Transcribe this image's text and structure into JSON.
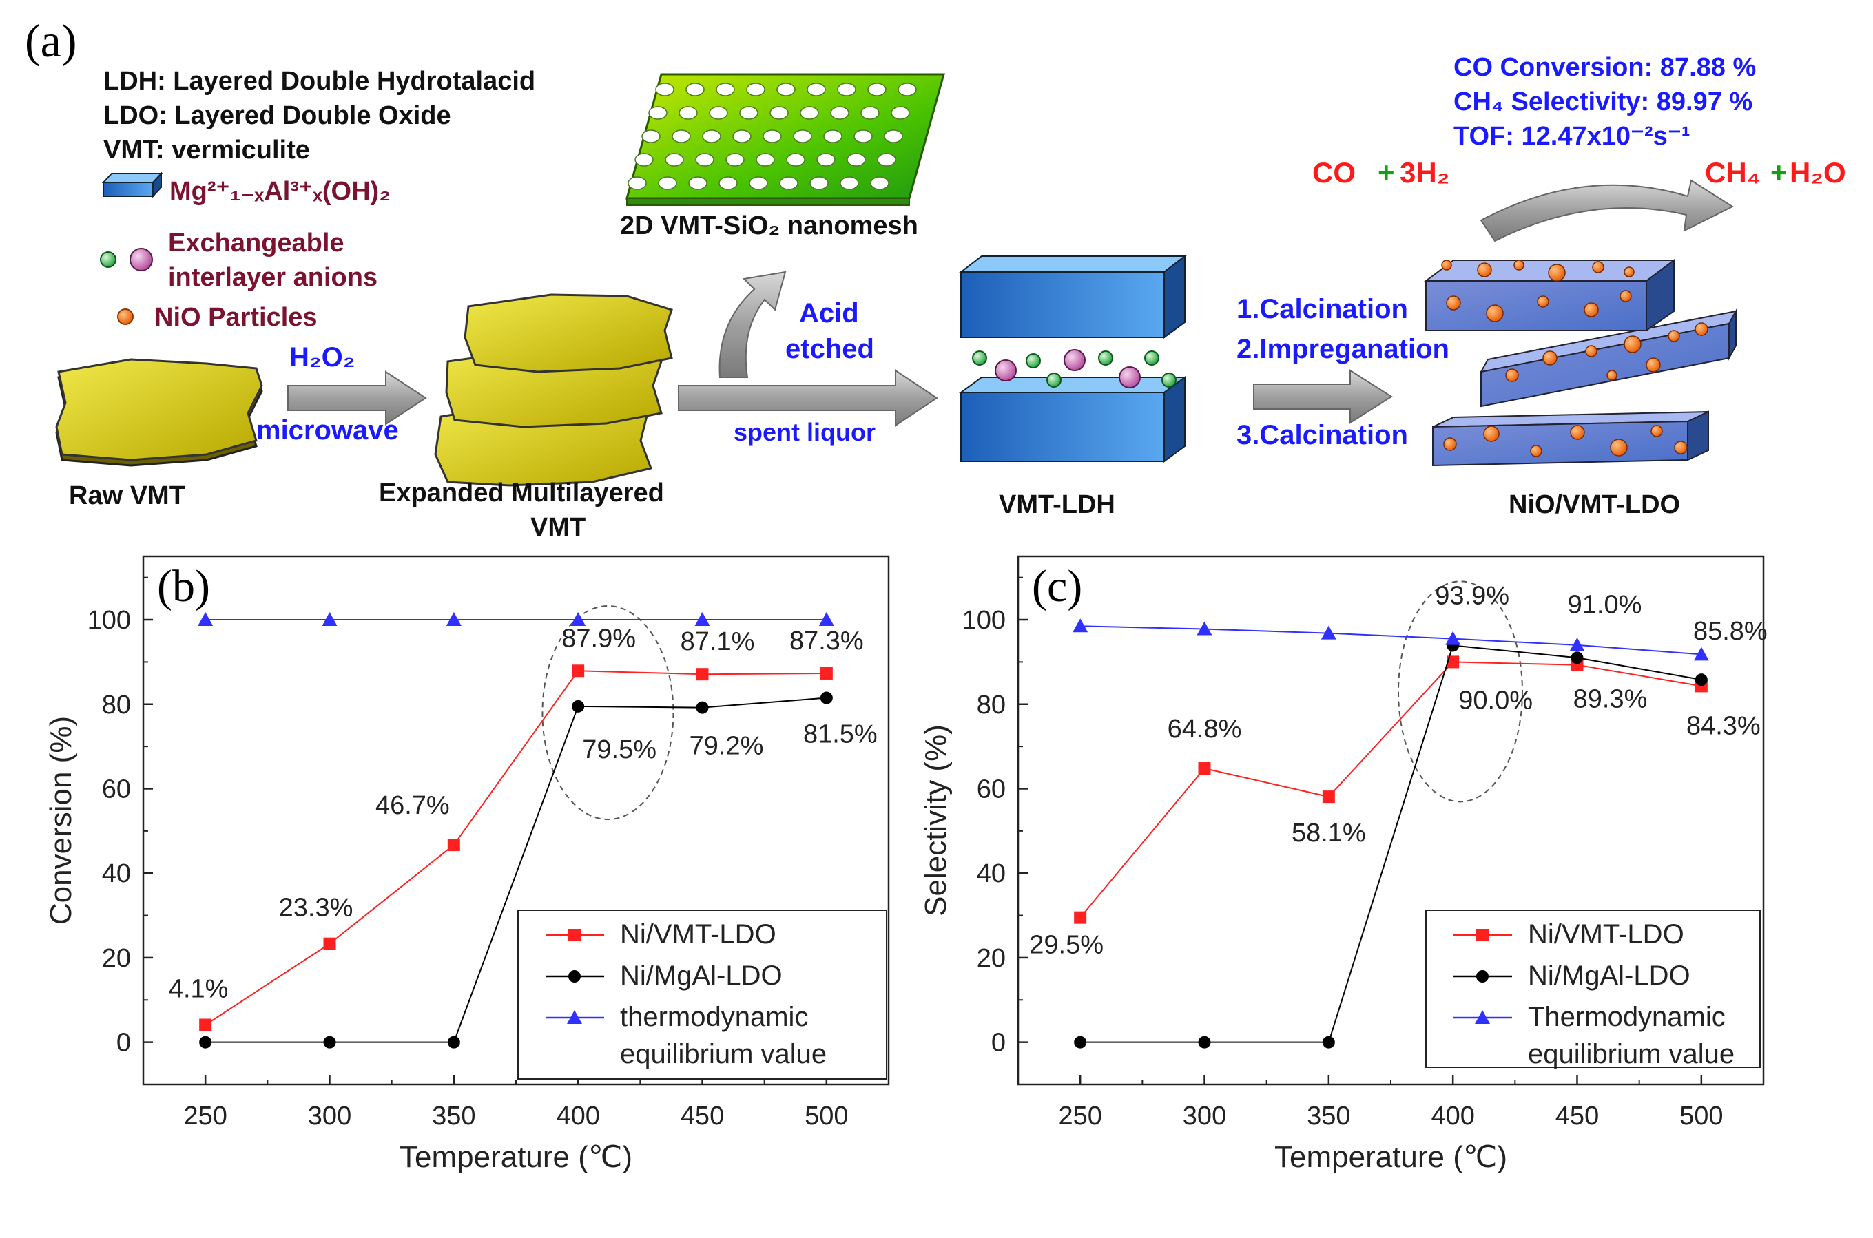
{
  "panel_a": {
    "label": "(a)",
    "legend": {
      "ldh": "LDH: Layered Double Hydrotalacid",
      "ldo": "LDO: Layered Double Oxide",
      "vmt": "VMT: vermiculite",
      "formula": "Mg²⁺₁₋ₓAl³⁺ₓ(OH)₂",
      "anions_1": "Exchangeable",
      "anions_2": "interlayer anions",
      "nio": "NiO Particles"
    },
    "results": {
      "co_conversion": "CO Conversion: 87.88 %",
      "ch4_selectivity": "CH₄ Selectivity: 89.97 %",
      "tof": "TOF: 12.47x10⁻²s⁻¹"
    },
    "reaction": {
      "reactant_1": "CO",
      "plus_1": "+",
      "reactant_2": "3H₂",
      "product_1": "CH₄",
      "plus_2": "+",
      "product_2": "H₂O"
    },
    "steps": {
      "raw": "Raw VMT",
      "h2o2": "H₂O₂",
      "microwave": "microwave",
      "expanded_1": "Expanded Multilayered",
      "expanded_2": "VMT",
      "nanomesh": "2D VMT-SiO₂ nanomesh",
      "acid_1": "Acid",
      "acid_2": "etched",
      "spent": "spent liquor",
      "vmt_ldh": "VMT-LDH",
      "calc_1": "1.Calcination",
      "calc_2": "2.Impreganation",
      "calc_3": "3.Calcination",
      "nio_ldo": "NiO/VMT-LDO"
    },
    "colors": {
      "blue_text": "#1a1aff",
      "red": "#ff1a1a",
      "green": "#12a012",
      "maroon": "#7a1230",
      "vmt": "#d2c400",
      "plate": "#2f7fd8",
      "nio_particle": "#ff6a10"
    }
  },
  "chart_data": [
    {
      "type": "line",
      "panel_label": "(b)",
      "xlabel": "Temperature (℃)",
      "ylabel": "Conversion (%)",
      "x": [
        250,
        300,
        350,
        400,
        450,
        500
      ],
      "xlim": [
        225,
        525
      ],
      "ylim": [
        -10,
        115
      ],
      "xticks": [
        "250",
        "300",
        "350",
        "400",
        "450",
        "500"
      ],
      "yticks": [
        "0",
        "20",
        "40",
        "60",
        "80",
        "100"
      ],
      "series": [
        {
          "name": "Ni/VMT-LDO",
          "color": "#ff2020",
          "marker": "square",
          "values": [
            4.1,
            23.3,
            46.7,
            87.9,
            87.1,
            87.3
          ],
          "labels": [
            "4.1%",
            "23.3%",
            "46.7%",
            "87.9%",
            "87.1%",
            "87.3%"
          ]
        },
        {
          "name": "Ni/MgAl-LDO",
          "color": "#000000",
          "marker": "circle",
          "values": [
            0,
            0,
            0,
            79.5,
            79.2,
            81.5
          ],
          "labels": [
            "79.5%",
            "79.2%",
            "81.5%"
          ]
        },
        {
          "name": "thermodynamic equilibrium value",
          "color": "#3030ff",
          "marker": "triangle",
          "values": [
            100,
            100,
            100,
            100,
            100,
            100
          ]
        }
      ],
      "legend_lines": [
        "Ni/VMT-LDO",
        "Ni/MgAl-LDO",
        "thermodynamic",
        "equilibrium value"
      ]
    },
    {
      "type": "line",
      "panel_label": "(c)",
      "xlabel": "Temperature (℃)",
      "ylabel": "Selectivity (%)",
      "x": [
        250,
        300,
        350,
        400,
        450,
        500
      ],
      "xlim": [
        225,
        525
      ],
      "ylim": [
        -10,
        115
      ],
      "xticks": [
        "250",
        "300",
        "350",
        "400",
        "450",
        "500"
      ],
      "yticks": [
        "0",
        "20",
        "40",
        "60",
        "80",
        "100"
      ],
      "series": [
        {
          "name": "Ni/VMT-LDO",
          "color": "#ff2020",
          "marker": "square",
          "values": [
            29.5,
            64.8,
            58.1,
            90.0,
            89.3,
            84.3
          ],
          "labels": [
            "29.5%",
            "64.8%",
            "58.1%",
            "90.0%",
            "89.3%",
            "84.3%"
          ]
        },
        {
          "name": "Ni/MgAl-LDO",
          "color": "#000000",
          "marker": "circle",
          "values": [
            0,
            0,
            0,
            93.9,
            91.0,
            85.8
          ],
          "labels": [
            "93.9%",
            "91.0%",
            "85.8%"
          ]
        },
        {
          "name": "Thermodynamic equilibrium value",
          "color": "#3030ff",
          "marker": "triangle",
          "values": [
            98.5,
            97.8,
            96.8,
            95.5,
            94.0,
            91.8
          ]
        }
      ],
      "legend_lines": [
        "Ni/VMT-LDO",
        "Ni/MgAl-LDO",
        "Thermodynamic",
        "equilibrium value"
      ]
    }
  ]
}
